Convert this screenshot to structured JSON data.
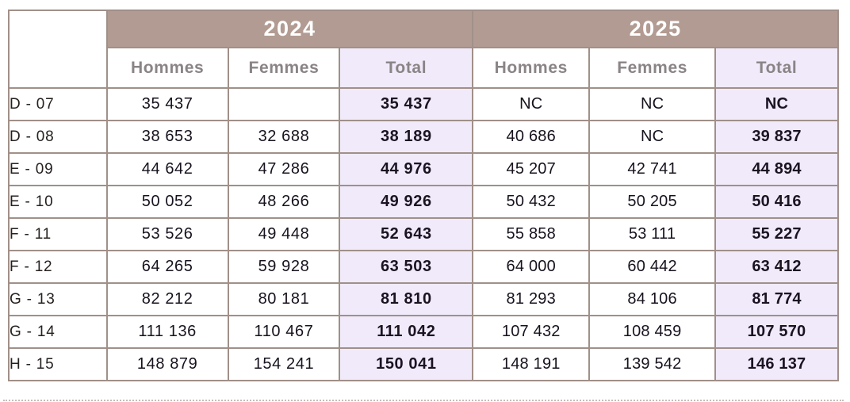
{
  "colors": {
    "year_band_bg": "#b29b92",
    "total_column_bg": "#f0eafa",
    "grid_border": "#a09089",
    "year_text": "#ffffff",
    "column_header_text": "#8a8486",
    "number_text": "#17121d"
  },
  "table": {
    "year_headers": [
      "2024",
      "2025"
    ],
    "column_headers": {
      "hommes": "Hommes",
      "femmes": "Femmes",
      "total": "Total"
    },
    "rows": [
      {
        "label": "D - 07",
        "values": [
          "35 437",
          "",
          "35 437",
          "NC",
          "NC",
          "NC"
        ]
      },
      {
        "label": "D - 08",
        "values": [
          "38 653",
          "32 688",
          "38 189",
          "40 686",
          "NC",
          "39 837"
        ]
      },
      {
        "label": "E - 09",
        "values": [
          "44 642",
          "47 286",
          "44 976",
          "45 207",
          "42 741",
          "44 894"
        ]
      },
      {
        "label": "E - 10",
        "values": [
          "50 052",
          "48 266",
          "49 926",
          "50 432",
          "50 205",
          "50 416"
        ]
      },
      {
        "label": "F - 11",
        "values": [
          "53 526",
          "49 448",
          "52 643",
          "55 858",
          "53 111",
          "55 227"
        ]
      },
      {
        "label": "F - 12",
        "values": [
          "64 265",
          "59 928",
          "63 503",
          "64 000",
          "60 442",
          "63 412"
        ]
      },
      {
        "label": "G - 13",
        "values": [
          "82 212",
          "80 181",
          "81 810",
          "81 293",
          "84 106",
          "81 774"
        ]
      },
      {
        "label": "G - 14",
        "values": [
          "111 136",
          "110 467",
          "111 042",
          "107 432",
          "108 459",
          "107 570"
        ]
      },
      {
        "label": "H - 15",
        "values": [
          "148 879",
          "154 241",
          "150 041",
          "148 191",
          "139 542",
          "146 137"
        ]
      }
    ]
  },
  "chart_data": {
    "type": "table",
    "title": "",
    "column_groups": [
      "2024",
      "2025"
    ],
    "columns": [
      "Hommes",
      "Femmes",
      "Total",
      "Hommes",
      "Femmes",
      "Total"
    ],
    "row_labels": [
      "D - 07",
      "D - 08",
      "E - 09",
      "E - 10",
      "F - 11",
      "F - 12",
      "G - 13",
      "G - 14",
      "H - 15"
    ],
    "rows": [
      [
        35437,
        null,
        35437,
        "NC",
        "NC",
        "NC"
      ],
      [
        38653,
        32688,
        38189,
        40686,
        "NC",
        39837
      ],
      [
        44642,
        47286,
        44976,
        45207,
        42741,
        44894
      ],
      [
        50052,
        48266,
        49926,
        50432,
        50205,
        50416
      ],
      [
        53526,
        49448,
        52643,
        55858,
        53111,
        55227
      ],
      [
        64265,
        59928,
        63503,
        64000,
        60442,
        63412
      ],
      [
        82212,
        80181,
        81810,
        81293,
        84106,
        81774
      ],
      [
        111136,
        110467,
        111042,
        107432,
        108459,
        107570
      ],
      [
        148879,
        154241,
        150041,
        148191,
        139542,
        146137
      ]
    ],
    "notes": "Total columns are highlighted lavender and bold; NC = value not communicated; empty Femmes cell for D - 07 in 2024"
  }
}
